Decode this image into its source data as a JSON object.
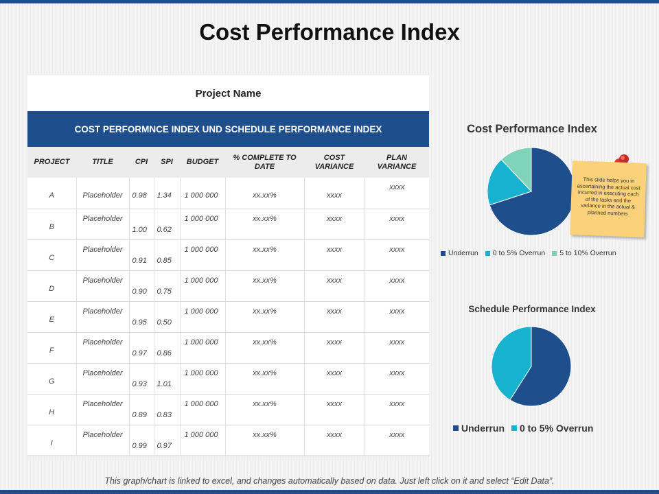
{
  "title": "Cost Performance Index",
  "table": {
    "project_name": "Project Name",
    "banner": "COST PERFORMNCE INDEX UND SCHEDULE PERFORMANCE INDEX",
    "headers": [
      "PROJECT",
      "TITLE",
      "CPI",
      "SPI",
      "BUDGET",
      "% COMPLETE TO DATE",
      "COST VARIANCE",
      "PLAN VARIANCE"
    ],
    "rows": [
      [
        "A",
        "Placeholder",
        "0.98",
        "1.34",
        "1 000 000",
        "xx.xx%",
        "xxxx",
        "xxxx"
      ],
      [
        "B",
        "Placeholder",
        "1.00",
        "0.62",
        "1 000 000",
        "xx.xx%",
        "xxxx",
        "xxxx"
      ],
      [
        "C",
        "Placeholder",
        "0.91",
        "0.85",
        "1 000 000",
        "xx.xx%",
        "xxxx",
        "xxxx"
      ],
      [
        "D",
        "Placeholder",
        "0.90",
        "0.75",
        "1 000 000",
        "xx.xx%",
        "xxxx",
        "xxxx"
      ],
      [
        "E",
        "Placeholder",
        "0.95",
        "0.50",
        "1 000 000",
        "xx.xx%",
        "xxxx",
        "xxxx"
      ],
      [
        "F",
        "Placeholder",
        "0.97",
        "0.86",
        "1 000 000",
        "xx.xx%",
        "xxxx",
        "xxxx"
      ],
      [
        "G",
        "Placeholder",
        "0.93",
        "1.01",
        "1 000 000",
        "xx.xx%",
        "xxxx",
        "xxxx"
      ],
      [
        "H",
        "Placeholder",
        "0.89",
        "0.83",
        "1 000 000",
        "xx.xx%",
        "xxxx",
        "xxxx"
      ],
      [
        "I",
        "Placeholder",
        "0.99",
        "0.97",
        "1 000 000",
        "xx.xx%",
        "xxxx",
        "xxxx"
      ]
    ]
  },
  "note": "This slide helps you in ascertaining the actual cost incurred in executing each of the tasks and the variance in the actual & planned numbers",
  "footer": "This graph/chart is linked to excel, and changes automatically based on data. Just left click on it and select “Edit Data”.",
  "colors": {
    "underrun": "#1f4e8c",
    "overrun_0_5": "#17b2cf",
    "overrun_5_10": "#7fd3b8",
    "brand": "#1f4e8c",
    "note": "#fbd279",
    "pin": "#e0372e"
  },
  "chart_data": [
    {
      "type": "pie",
      "title": "Cost Performance Index",
      "categories": [
        "Underrun",
        "0 to 5% Overrun",
        "5 to 10% Overrun"
      ],
      "values": [
        70,
        18,
        12
      ],
      "legend": "bottom"
    },
    {
      "type": "pie",
      "title": "Schedule Performance Index",
      "categories": [
        "Underrun",
        "0 to 5% Overrun"
      ],
      "values": [
        59,
        41
      ],
      "legend": "bottom"
    }
  ]
}
